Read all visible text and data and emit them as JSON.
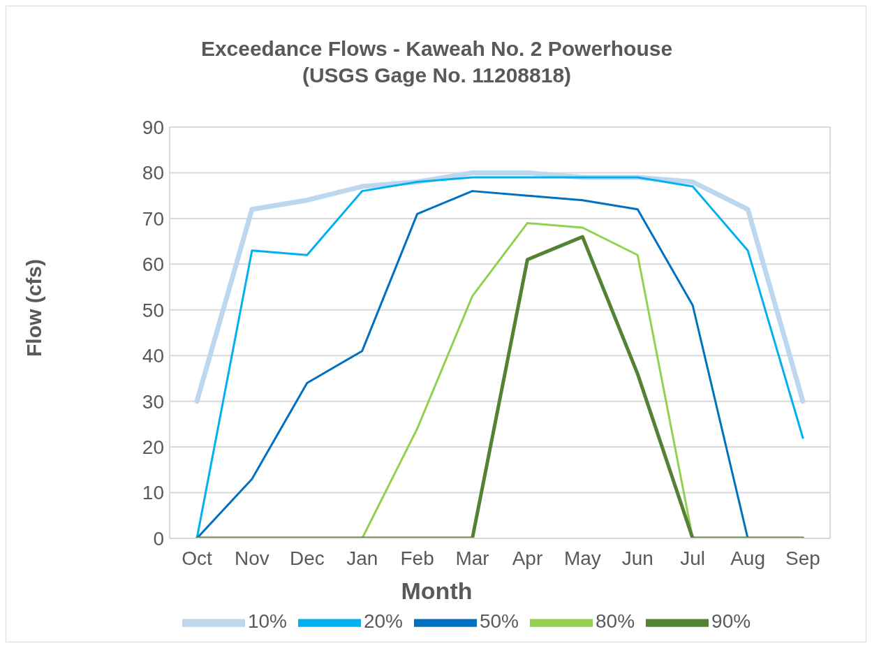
{
  "chart_data": {
    "type": "line",
    "title": "Exceedance Flows - Kaweah No. 2 Powerhouse\n(USGS Gage No. 11208818)",
    "xlabel": "Month",
    "ylabel": "Flow (cfs)",
    "categories": [
      "Oct",
      "Nov",
      "Dec",
      "Jan",
      "Feb",
      "Mar",
      "Apr",
      "May",
      "Jun",
      "Jul",
      "Aug",
      "Sep"
    ],
    "series": [
      {
        "name": "10%",
        "color": "#bdd7ee",
        "values": [
          30,
          72,
          74,
          77,
          78,
          80,
          80,
          79,
          79,
          78,
          72,
          30
        ]
      },
      {
        "name": "20%",
        "color": "#00b0f0",
        "values": [
          0,
          63,
          62,
          76,
          78,
          79,
          79,
          79,
          79,
          77,
          63,
          22
        ]
      },
      {
        "name": "50%",
        "color": "#0070c0",
        "values": [
          0,
          13,
          34,
          41,
          71,
          76,
          75,
          74,
          72,
          51,
          0,
          null
        ]
      },
      {
        "name": "80%",
        "color": "#92d050",
        "values": [
          null,
          null,
          null,
          0,
          24,
          53,
          69,
          68,
          62,
          0,
          null,
          null
        ]
      },
      {
        "name": "90%",
        "color": "#548235",
        "values": [
          0,
          0,
          0,
          0,
          0,
          0,
          61,
          66,
          36,
          0,
          0,
          0
        ]
      }
    ],
    "ylim": [
      0,
      90
    ],
    "yticks": [
      0,
      10,
      20,
      30,
      40,
      50,
      60,
      70,
      80,
      90
    ],
    "grid": "y",
    "legend": "bottom",
    "marker": "none",
    "line_style": "solid"
  }
}
